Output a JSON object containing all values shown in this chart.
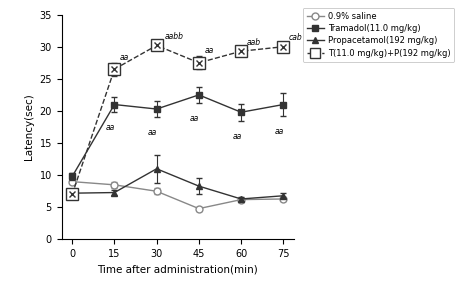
{
  "x": [
    0,
    15,
    30,
    45,
    60,
    75
  ],
  "saline": [
    9.0,
    8.5,
    7.5,
    4.8,
    6.2,
    6.3
  ],
  "saline_err": [
    0.4,
    0.5,
    0.5,
    0.3,
    0.3,
    0.3
  ],
  "tramadol": [
    9.8,
    21.0,
    20.3,
    22.5,
    19.8,
    21.0
  ],
  "tramadol_err": [
    0.5,
    1.2,
    1.3,
    1.3,
    1.3,
    1.8
  ],
  "propacetamol": [
    7.2,
    7.3,
    11.0,
    8.3,
    6.3,
    6.8
  ],
  "propacetamol_err": [
    0.3,
    0.4,
    2.2,
    1.2,
    0.3,
    0.4
  ],
  "combo": [
    7.0,
    26.5,
    30.2,
    27.5,
    29.3,
    30.0
  ],
  "combo_err": [
    0.4,
    1.0,
    0.5,
    1.0,
    0.5,
    0.5
  ],
  "ann_combo_x": [
    15,
    30,
    45,
    60,
    75
  ],
  "ann_combo_lbl": [
    "aa",
    "aabb",
    "aa",
    "aab",
    "cab"
  ],
  "ann_tram_x": [
    15,
    30,
    45,
    60,
    75
  ],
  "ann_tram_lbl": [
    "aa",
    "aa",
    "aa",
    "aa",
    "aa"
  ],
  "xlabel": "Time after administration(min)",
  "ylabel": "Latency(sec)",
  "ylim": [
    0,
    35
  ],
  "yticks": [
    0,
    5,
    10,
    15,
    20,
    25,
    30,
    35
  ],
  "legend_labels": [
    "0.9% saline",
    "Tramadol(11.0 mg/kg)",
    "Propacetamol(192 mg/kg)",
    "T(11.0 mg/kg)+P(192 mg/kg)"
  ],
  "line_color": "#333333",
  "saline_color": "#888888"
}
